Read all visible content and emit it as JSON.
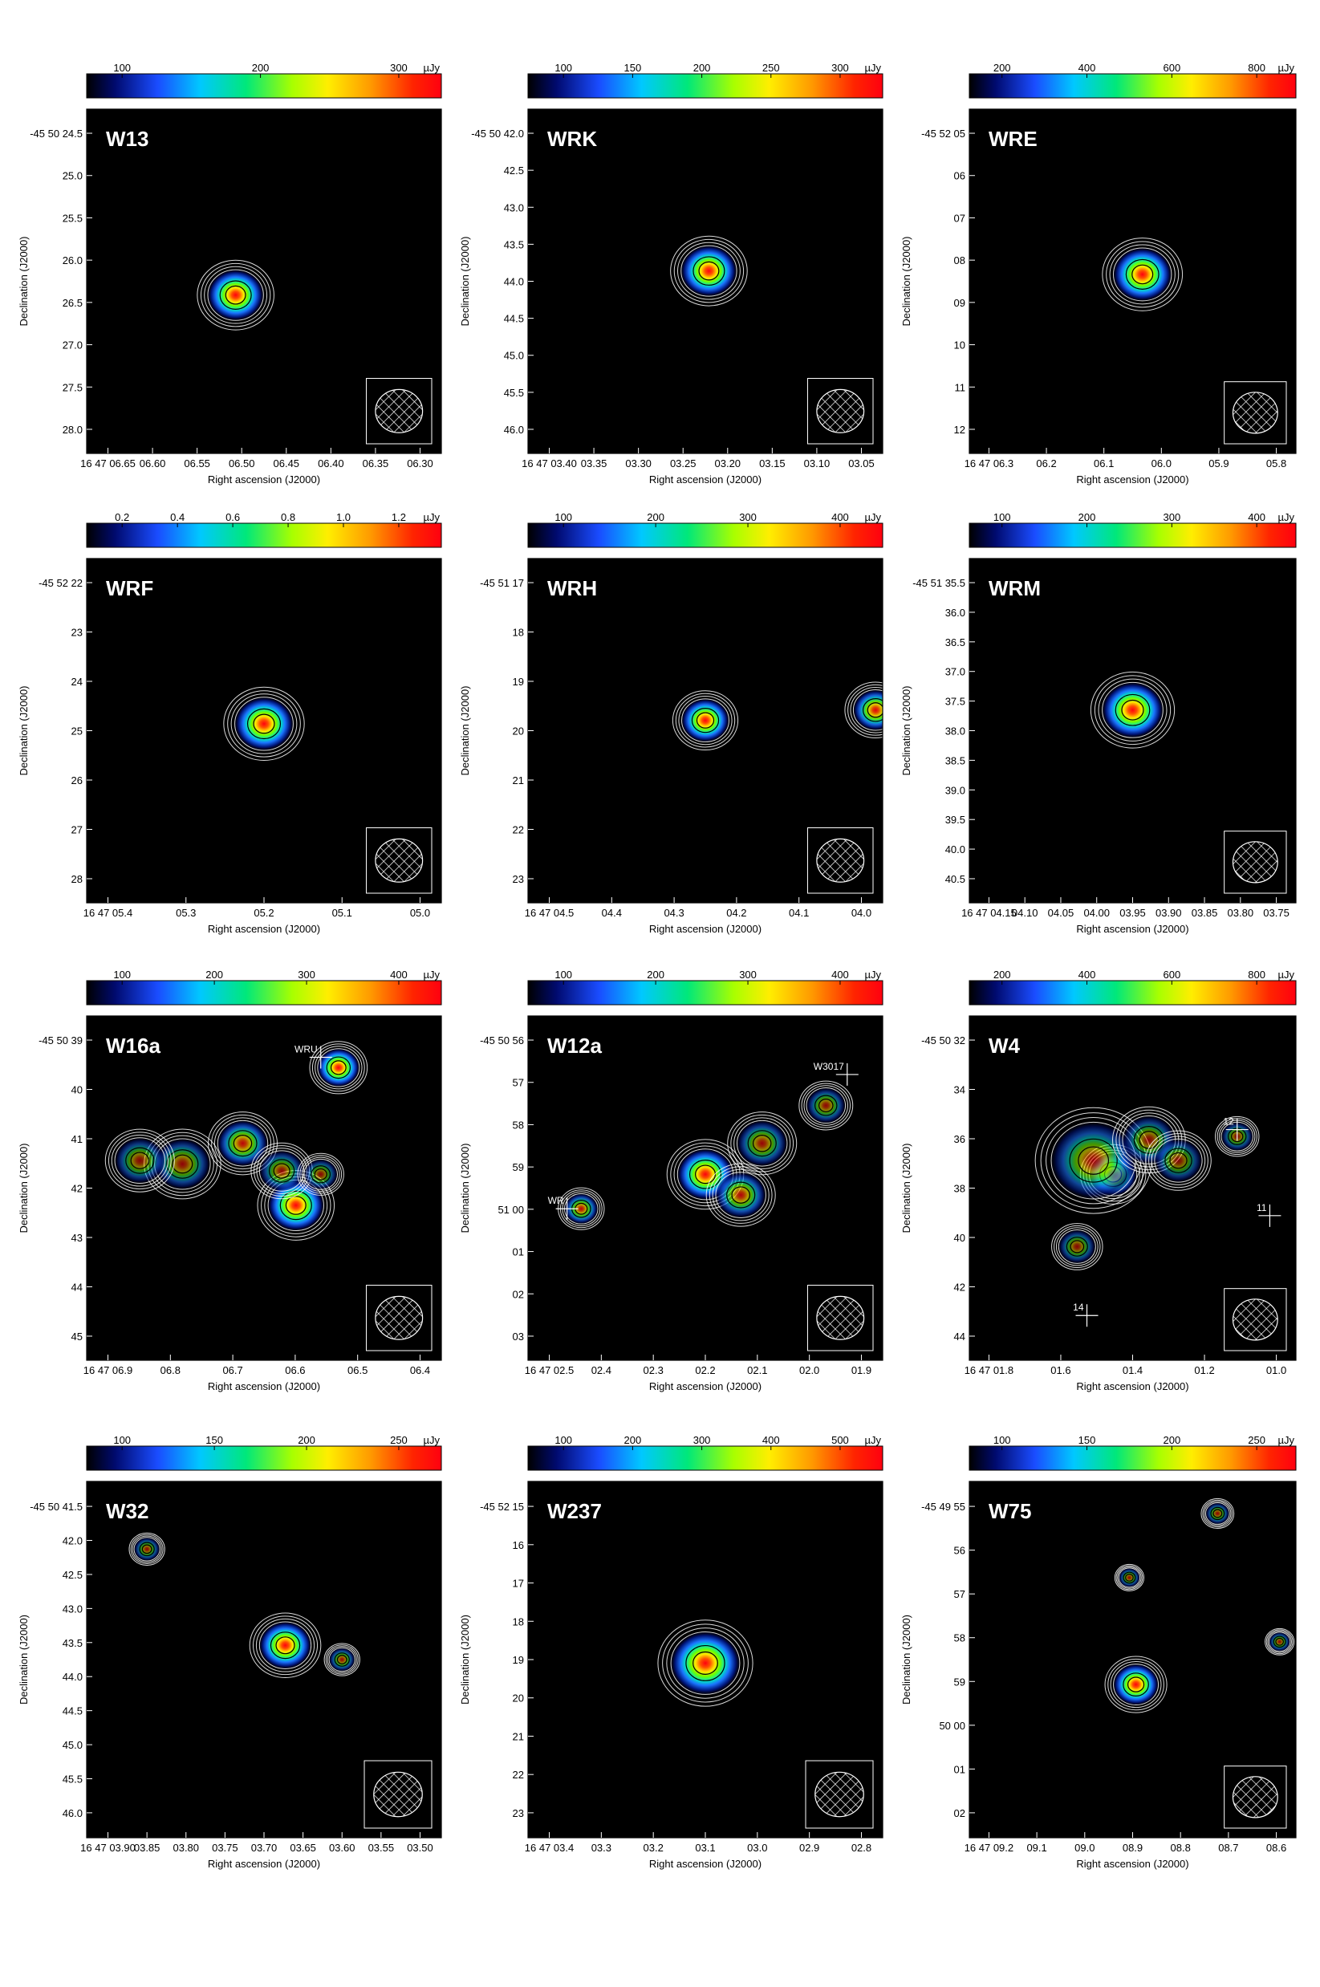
{
  "chart_data": [
    {
      "type": "heatmap",
      "title": "W13",
      "unit": "µJy",
      "colorbar_ticks": [
        "100",
        "200",
        "300"
      ],
      "xlabel": "Right ascension (J2000)",
      "ylabel": "Declination (J2000)",
      "x_ticks": [
        "16 47 06.65",
        "06.60",
        "06.55",
        "06.50",
        "06.45",
        "06.40",
        "06.35",
        "06.30"
      ],
      "y_ticks": [
        "-45 50 24.5",
        "25.0",
        "25.5",
        "26.0",
        "26.5",
        "27.0",
        "27.5",
        "28.0"
      ],
      "sources": [
        {
          "x": 0.42,
          "y": 0.54,
          "peak": 1.0,
          "size": 1.0
        }
      ],
      "markers": []
    },
    {
      "type": "heatmap",
      "title": "WRK",
      "unit": "µJy",
      "colorbar_ticks": [
        "100",
        "150",
        "200",
        "250",
        "300"
      ],
      "xlabel": "Right ascension (J2000)",
      "ylabel": "Declination (J2000)",
      "x_ticks": [
        "16 47 03.40",
        "03.35",
        "03.30",
        "03.25",
        "03.20",
        "03.15",
        "03.10",
        "03.05"
      ],
      "y_ticks": [
        "-45 50 42.0",
        "42.5",
        "43.0",
        "43.5",
        "44.0",
        "44.5",
        "45.0",
        "45.5",
        "46.0"
      ],
      "sources": [
        {
          "x": 0.51,
          "y": 0.47,
          "peak": 1.0,
          "size": 1.0
        }
      ],
      "markers": []
    },
    {
      "type": "heatmap",
      "title": "WRE",
      "unit": "µJy",
      "colorbar_ticks": [
        "200",
        "400",
        "600",
        "800"
      ],
      "xlabel": "Right ascension (J2000)",
      "ylabel": "Declination (J2000)",
      "x_ticks": [
        "16 47 06.3",
        "06.2",
        "06.1",
        "06.0",
        "05.9",
        "05.8"
      ],
      "y_ticks": [
        "-45 52 05",
        "06",
        "07",
        "08",
        "09",
        "10",
        "11",
        "12"
      ],
      "sources": [
        {
          "x": 0.53,
          "y": 0.48,
          "peak": 1.0,
          "size": 1.1
        }
      ],
      "markers": []
    },
    {
      "type": "heatmap",
      "title": "WRF",
      "unit": "µJy",
      "colorbar_ticks": [
        "0.2",
        "0.4",
        "0.6",
        "0.8",
        "1.0",
        "1.2"
      ],
      "xlabel": "Right ascension (J2000)",
      "ylabel": "Declination (J2000)",
      "x_ticks": [
        "16 47 05.4",
        "05.3",
        "05.2",
        "05.1",
        "05.0"
      ],
      "y_ticks": [
        "-45 52 22",
        "23",
        "24",
        "25",
        "26",
        "27",
        "28"
      ],
      "sources": [
        {
          "x": 0.5,
          "y": 0.48,
          "peak": 1.0,
          "size": 1.05
        }
      ],
      "markers": []
    },
    {
      "type": "heatmap",
      "title": "WRH",
      "unit": "µJy",
      "colorbar_ticks": [
        "100",
        "200",
        "300",
        "400"
      ],
      "xlabel": "Right ascension (J2000)",
      "ylabel": "Declination (J2000)",
      "x_ticks": [
        "16 47 04.5",
        "04.4",
        "04.3",
        "04.2",
        "04.1",
        "04.0"
      ],
      "y_ticks": [
        "-45 51 17",
        "18",
        "19",
        "20",
        "21",
        "22",
        "23"
      ],
      "sources": [
        {
          "x": 0.5,
          "y": 0.47,
          "peak": 1.0,
          "size": 0.85
        },
        {
          "x": 0.98,
          "y": 0.44,
          "peak": 0.75,
          "size": 0.8
        }
      ],
      "markers": []
    },
    {
      "type": "heatmap",
      "title": "WRM",
      "unit": "µJy",
      "colorbar_ticks": [
        "100",
        "200",
        "300",
        "400"
      ],
      "xlabel": "Right ascension (J2000)",
      "ylabel": "Declination (J2000)",
      "x_ticks": [
        "16 47 04.15",
        "04.10",
        "04.05",
        "04.00",
        "03.95",
        "03.90",
        "03.85",
        "03.80",
        "03.75"
      ],
      "y_ticks": [
        "-45 51 35.5",
        "36.0",
        "36.5",
        "37.0",
        "37.5",
        "38.0",
        "38.5",
        "39.0",
        "39.5",
        "40.0",
        "40.5"
      ],
      "sources": [
        {
          "x": 0.5,
          "y": 0.44,
          "peak": 1.0,
          "size": 1.15
        }
      ],
      "markers": []
    },
    {
      "type": "heatmap",
      "title": "W16a",
      "unit": "µJy",
      "colorbar_ticks": [
        "100",
        "200",
        "300",
        "400"
      ],
      "xlabel": "Right ascension (J2000)",
      "ylabel": "Declination (J2000)",
      "x_ticks": [
        "16 47 06.9",
        "06.8",
        "06.7",
        "06.6",
        "06.5",
        "06.4"
      ],
      "y_ticks": [
        "-45 50 39",
        "40",
        "41",
        "42",
        "43",
        "44",
        "45"
      ],
      "sources": [
        {
          "x": 0.71,
          "y": 0.15,
          "peak": 1.0,
          "size": 0.75
        },
        {
          "x": 0.44,
          "y": 0.37,
          "peak": 0.55,
          "size": 0.9
        },
        {
          "x": 0.59,
          "y": 0.55,
          "peak": 0.95,
          "size": 1.0
        },
        {
          "x": 0.27,
          "y": 0.43,
          "peak": 0.3,
          "size": 1.0
        },
        {
          "x": 0.15,
          "y": 0.42,
          "peak": 0.25,
          "size": 0.9
        },
        {
          "x": 0.55,
          "y": 0.45,
          "peak": 0.3,
          "size": 0.8
        },
        {
          "x": 0.66,
          "y": 0.46,
          "peak": 0.25,
          "size": 0.6
        }
      ],
      "markers": [
        {
          "label": "WRU",
          "x": 0.66,
          "y": 0.12
        }
      ]
    },
    {
      "type": "heatmap",
      "title": "W12a",
      "unit": "µJy",
      "colorbar_ticks": [
        "100",
        "200",
        "300",
        "400"
      ],
      "xlabel": "Right ascension (J2000)",
      "ylabel": "Declination (J2000)",
      "x_ticks": [
        "16 47 02.5",
        "02.4",
        "02.3",
        "02.2",
        "02.1",
        "02.0",
        "01.9"
      ],
      "y_ticks": [
        "-45 50 56",
        "57",
        "58",
        "59",
        "51 00",
        "01",
        "02",
        "03"
      ],
      "sources": [
        {
          "x": 0.5,
          "y": 0.46,
          "peak": 0.9,
          "size": 1.0
        },
        {
          "x": 0.6,
          "y": 0.52,
          "peak": 0.5,
          "size": 0.9
        },
        {
          "x": 0.66,
          "y": 0.37,
          "peak": 0.35,
          "size": 0.9
        },
        {
          "x": 0.84,
          "y": 0.26,
          "peak": 0.3,
          "size": 0.7
        },
        {
          "x": 0.15,
          "y": 0.56,
          "peak": 0.55,
          "size": 0.6
        }
      ],
      "markers": [
        {
          "label": "W3017",
          "x": 0.9,
          "y": 0.17
        },
        {
          "label": "WR",
          "x": 0.11,
          "y": 0.56
        }
      ]
    },
    {
      "type": "heatmap",
      "title": "W4",
      "unit": "µJy",
      "colorbar_ticks": [
        "200",
        "400",
        "600",
        "800"
      ],
      "xlabel": "Right ascension (J2000)",
      "ylabel": "Declination (J2000)",
      "x_ticks": [
        "16 47 01.8",
        "01.6",
        "01.4",
        "01.2",
        "01.0"
      ],
      "y_ticks": [
        "-45 50 32",
        "34",
        "36",
        "38",
        "40",
        "42",
        "44"
      ],
      "sources": [
        {
          "x": 0.44,
          "y": 0.46,
          "peak": 0.6,
          "size": 0.9
        },
        {
          "x": 0.38,
          "y": 0.42,
          "peak": 0.35,
          "size": 1.6
        },
        {
          "x": 0.55,
          "y": 0.36,
          "peak": 0.25,
          "size": 1.0
        },
        {
          "x": 0.64,
          "y": 0.42,
          "peak": 0.2,
          "size": 0.9
        },
        {
          "x": 0.33,
          "y": 0.67,
          "peak": 0.25,
          "size": 0.7
        },
        {
          "x": 0.82,
          "y": 0.35,
          "peak": 0.25,
          "size": 0.6
        }
      ],
      "markers": [
        {
          "label": "12",
          "x": 0.82,
          "y": 0.33
        },
        {
          "label": "11",
          "x": 0.92,
          "y": 0.58
        },
        {
          "label": "14",
          "x": 0.36,
          "y": 0.87
        }
      ]
    },
    {
      "type": "heatmap",
      "title": "W32",
      "unit": "µJy",
      "colorbar_ticks": [
        "100",
        "150",
        "200",
        "250"
      ],
      "xlabel": "Right ascension (J2000)",
      "ylabel": "Declination (J2000)",
      "x_ticks": [
        "16 47 03.90",
        "03.85",
        "03.80",
        "03.75",
        "03.70",
        "03.65",
        "03.60",
        "03.55",
        "03.50"
      ],
      "y_ticks": [
        "-45 50 41.5",
        "42.0",
        "42.5",
        "43.0",
        "43.5",
        "44.0",
        "44.5",
        "45.0",
        "45.5",
        "46.0"
      ],
      "sources": [
        {
          "x": 0.56,
          "y": 0.46,
          "peak": 1.0,
          "size": 0.9
        },
        {
          "x": 0.72,
          "y": 0.5,
          "peak": 0.35,
          "size": 0.45
        },
        {
          "x": 0.17,
          "y": 0.19,
          "peak": 0.3,
          "size": 0.45
        }
      ],
      "markers": []
    },
    {
      "type": "heatmap",
      "title": "W237",
      "unit": "µJy",
      "colorbar_ticks": [
        "100",
        "200",
        "300",
        "400",
        "500"
      ],
      "xlabel": "Right ascension (J2000)",
      "ylabel": "Declination (J2000)",
      "x_ticks": [
        "16 47 03.4",
        "03.3",
        "03.2",
        "03.1",
        "03.0",
        "02.9",
        "02.8"
      ],
      "y_ticks": [
        "-45 52 15",
        "16",
        "17",
        "18",
        "19",
        "20",
        "21",
        "22",
        "23"
      ],
      "sources": [
        {
          "x": 0.5,
          "y": 0.51,
          "peak": 1.0,
          "size": 1.2
        }
      ],
      "markers": []
    },
    {
      "type": "heatmap",
      "title": "W75",
      "unit": "µJy",
      "colorbar_ticks": [
        "100",
        "150",
        "200",
        "250"
      ],
      "xlabel": "Right ascension (J2000)",
      "ylabel": "Declination (J2000)",
      "x_ticks": [
        "16 47 09.2",
        "09.1",
        "09.0",
        "08.9",
        "08.8",
        "08.7",
        "08.6"
      ],
      "y_ticks": [
        "-45 49 55",
        "56",
        "57",
        "58",
        "59",
        "50 00",
        "01",
        "02"
      ],
      "sources": [
        {
          "x": 0.51,
          "y": 0.57,
          "peak": 1.0,
          "size": 0.85
        },
        {
          "x": 0.49,
          "y": 0.27,
          "peak": 0.3,
          "size": 0.4
        },
        {
          "x": 0.76,
          "y": 0.09,
          "peak": 0.3,
          "size": 0.45
        },
        {
          "x": 0.95,
          "y": 0.45,
          "peak": 0.3,
          "size": 0.4
        }
      ],
      "markers": []
    }
  ]
}
